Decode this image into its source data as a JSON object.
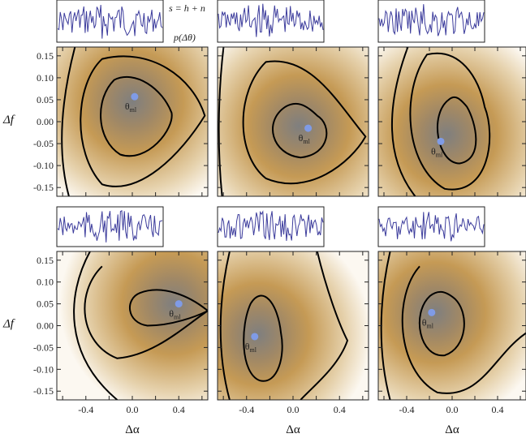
{
  "figure": {
    "annotation_signal": "s = h + n",
    "annotation_posterior": "p(Δθ)",
    "ml_label": "θ",
    "ml_label_sub": "ml",
    "xlabel": "Δα",
    "ylabel": "Δf"
  },
  "colors": {
    "background_light": "#fcf8f1",
    "background_mid": "#c59a55",
    "peak_dark": "#7f7f7f",
    "contour": "#000000",
    "trace": "#3c3c9c",
    "ml_point": "#7f9be6",
    "frame": "#222222"
  },
  "chart_data": [
    {
      "type": "heatmap",
      "panel": "top-left",
      "xlim": [
        -0.65,
        0.65
      ],
      "ylim": [
        -0.17,
        0.17
      ],
      "x_ticks": [],
      "y_ticks": [
        "0.15",
        "0.10",
        "0.05",
        "0.00",
        "-0.05",
        "-0.10",
        "-0.15"
      ],
      "peak": [
        0.0,
        0.045
      ],
      "ml_point": [
        0.02,
        0.057
      ],
      "contours": 3
    },
    {
      "type": "heatmap",
      "panel": "top-center",
      "xlim": [
        -0.65,
        0.65
      ],
      "ylim": [
        -0.17,
        0.17
      ],
      "x_ticks": [],
      "y_ticks": [],
      "peak": [
        0.05,
        -0.01
      ],
      "ml_point": [
        0.13,
        -0.015
      ],
      "contours": 3
    },
    {
      "type": "heatmap",
      "panel": "top-right",
      "xlim": [
        -0.65,
        0.65
      ],
      "ylim": [
        -0.17,
        0.17
      ],
      "x_ticks": [],
      "y_ticks": [],
      "peak": [
        -0.05,
        -0.03
      ],
      "ml_point": [
        -0.1,
        -0.045
      ],
      "contours": 3
    },
    {
      "type": "heatmap",
      "panel": "bottom-left",
      "xlim": [
        -0.65,
        0.65
      ],
      "ylim": [
        -0.17,
        0.17
      ],
      "x_ticks": [
        "-0.4",
        "0.0",
        "0.4"
      ],
      "y_ticks": [
        "0.15",
        "0.10",
        "0.05",
        "0.00",
        "-0.05",
        "-0.10",
        "-0.15"
      ],
      "peak": [
        0.35,
        0.05
      ],
      "ml_point": [
        0.4,
        0.05
      ],
      "contours": 3
    },
    {
      "type": "heatmap",
      "panel": "bottom-center",
      "xlim": [
        -0.65,
        0.65
      ],
      "ylim": [
        -0.17,
        0.17
      ],
      "x_ticks": [
        "-0.4",
        "0.0",
        "0.4"
      ],
      "y_ticks": [],
      "peak": [
        -0.3,
        -0.02
      ],
      "ml_point": [
        -0.33,
        -0.025
      ],
      "contours": 3
    },
    {
      "type": "heatmap",
      "panel": "bottom-right",
      "xlim": [
        -0.65,
        0.65
      ],
      "ylim": [
        -0.17,
        0.17
      ],
      "x_ticks": [
        "-0.4",
        "0.0",
        "0.4"
      ],
      "y_ticks": [],
      "peak": [
        -0.15,
        0.03
      ],
      "ml_point": [
        -0.18,
        0.03
      ],
      "contours": 3
    }
  ]
}
